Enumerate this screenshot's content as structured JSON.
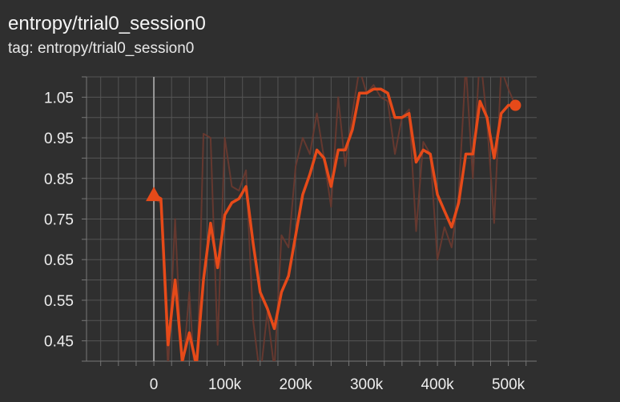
{
  "header": {
    "title": "entropy/trial0_session0",
    "tag": "tag: entropy/trial0_session0"
  },
  "chart_data": {
    "type": "line",
    "title": "entropy/trial0_session0",
    "xlabel": "",
    "ylabel": "",
    "xlim": [
      -95000,
      540000
    ],
    "ylim": [
      0.4,
      1.1
    ],
    "x_ticks": [
      0,
      100000,
      200000,
      300000,
      400000,
      500000
    ],
    "x_tick_labels": [
      "0",
      "100k",
      "200k",
      "300k",
      "400k",
      "500k"
    ],
    "y_ticks": [
      0.45,
      0.55,
      0.65,
      0.75,
      0.85,
      0.95,
      1.05
    ],
    "y_tick_labels": [
      "0.45",
      "0.55",
      "0.65",
      "0.75",
      "0.85",
      "0.95",
      "1.05"
    ],
    "grid": true,
    "colors": {
      "smoothed": "#e64a19",
      "raw": "#6b3a30",
      "background": "#2f2f2f",
      "grid": "#555555"
    },
    "series": [
      {
        "role": "raw",
        "x": [
          0,
          10000,
          20000,
          30000,
          40000,
          50000,
          60000,
          70000,
          80000,
          90000,
          100000,
          110000,
          120000,
          130000,
          140000,
          150000,
          160000,
          170000,
          180000,
          190000,
          200000,
          210000,
          220000,
          230000,
          240000,
          250000,
          260000,
          270000,
          280000,
          290000,
          300000,
          310000,
          320000,
          330000,
          340000,
          350000,
          360000,
          370000,
          380000,
          390000,
          400000,
          410000,
          420000,
          430000,
          440000,
          450000,
          460000,
          470000,
          480000,
          490000,
          500000,
          510000
        ],
        "y": [
          0.8,
          0.79,
          0.38,
          0.75,
          0.36,
          0.57,
          0.3,
          0.96,
          0.95,
          0.44,
          0.95,
          0.83,
          0.82,
          0.87,
          0.5,
          0.36,
          0.52,
          0.38,
          0.71,
          0.68,
          0.88,
          0.95,
          0.91,
          1.01,
          0.9,
          0.78,
          1.05,
          0.88,
          1.01,
          1.12,
          1.06,
          1.08,
          1.05,
          1.04,
          0.91,
          1.0,
          1.02,
          0.72,
          0.94,
          0.91,
          0.65,
          0.73,
          0.68,
          0.81,
          1.13,
          0.85,
          1.16,
          0.99,
          0.74,
          1.12,
          1.07,
          1.03
        ]
      },
      {
        "role": "smoothed",
        "x": [
          0,
          10000,
          20000,
          30000,
          40000,
          50000,
          60000,
          70000,
          80000,
          90000,
          100000,
          110000,
          120000,
          130000,
          140000,
          150000,
          160000,
          170000,
          180000,
          190000,
          200000,
          210000,
          220000,
          230000,
          240000,
          250000,
          260000,
          270000,
          280000,
          290000,
          300000,
          310000,
          320000,
          330000,
          340000,
          350000,
          360000,
          370000,
          380000,
          390000,
          400000,
          410000,
          420000,
          430000,
          440000,
          450000,
          460000,
          470000,
          480000,
          490000,
          500000,
          510000
        ],
        "y": [
          0.81,
          0.8,
          0.44,
          0.6,
          0.4,
          0.47,
          0.39,
          0.6,
          0.74,
          0.63,
          0.76,
          0.79,
          0.8,
          0.83,
          0.69,
          0.57,
          0.53,
          0.48,
          0.57,
          0.61,
          0.71,
          0.81,
          0.86,
          0.92,
          0.9,
          0.83,
          0.92,
          0.92,
          0.97,
          1.06,
          1.06,
          1.07,
          1.07,
          1.06,
          1.0,
          1.0,
          1.01,
          0.89,
          0.92,
          0.91,
          0.81,
          0.77,
          0.73,
          0.79,
          0.91,
          0.91,
          1.04,
          1.0,
          0.9,
          1.01,
          1.03,
          1.03
        ]
      }
    ],
    "markers": {
      "start": "triangle",
      "end": "circle"
    }
  }
}
